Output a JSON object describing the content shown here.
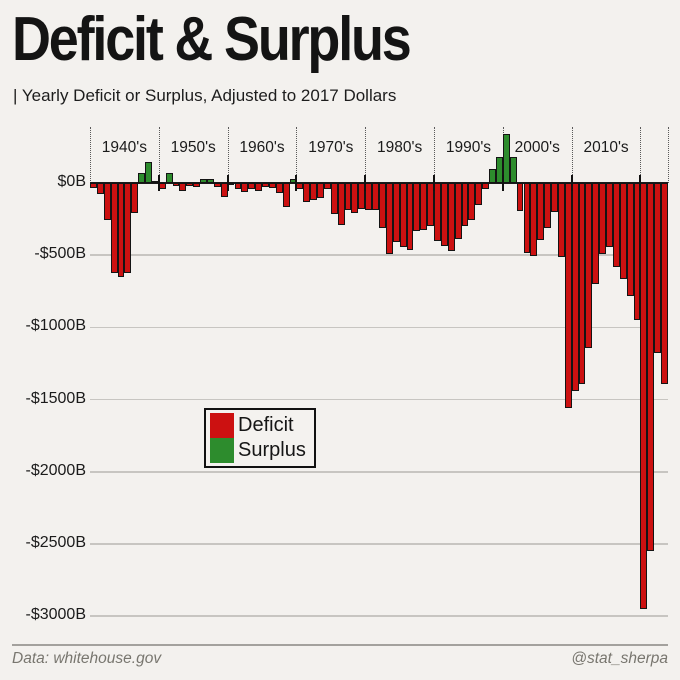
{
  "header": {
    "title": "Deficit & Surplus",
    "subtitle": "| Yearly Deficit or Surplus, Adjusted to 2017 Dollars"
  },
  "legend": {
    "items": [
      {
        "label": "Deficit",
        "color": "#cc1111"
      },
      {
        "label": "Surplus",
        "color": "#2d8c2d"
      }
    ]
  },
  "footer": {
    "source": "Data: whitehouse.gov",
    "credit": "@stat_sherpa"
  },
  "chart_data": {
    "type": "bar",
    "title": "Deficit & Surplus",
    "subtitle": "Yearly Deficit or Surplus, Adjusted to 2017 Dollars",
    "units": "billions of 2017 dollars",
    "ylabel": "",
    "xlabel": "",
    "ylim": [
      -3000,
      350
    ],
    "grid": "horizontal",
    "legend_position": "center-left",
    "colors": {
      "deficit": "#cc1111",
      "surplus": "#2d8c2d",
      "bar_outline": "#141414"
    },
    "y_ticks": [
      {
        "label": "$0B",
        "value": 0
      },
      {
        "label": "-$500B",
        "value": -500
      },
      {
        "label": "-$1000B",
        "value": -1000
      },
      {
        "label": "-$1500B",
        "value": -1500
      },
      {
        "label": "-$2000B",
        "value": -2000
      },
      {
        "label": "-$2500B",
        "value": -2500
      },
      {
        "label": "-$3000B",
        "value": -3000
      }
    ],
    "decade_labels": [
      "1940's",
      "1950's",
      "1960's",
      "1970's",
      "1980's",
      "1990's",
      "2000's",
      "2010's"
    ],
    "x": [
      1940,
      1941,
      1942,
      1943,
      1944,
      1945,
      1946,
      1947,
      1948,
      1949,
      1950,
      1951,
      1952,
      1953,
      1954,
      1955,
      1956,
      1957,
      1958,
      1959,
      1960,
      1961,
      1962,
      1963,
      1964,
      1965,
      1966,
      1967,
      1968,
      1969,
      1970,
      1971,
      1972,
      1973,
      1974,
      1975,
      1976,
      1977,
      1978,
      1979,
      1980,
      1981,
      1982,
      1983,
      1984,
      1985,
      1986,
      1987,
      1988,
      1989,
      1990,
      1991,
      1992,
      1993,
      1994,
      1995,
      1996,
      1997,
      1998,
      1999,
      2000,
      2001,
      2002,
      2003,
      2004,
      2005,
      2006,
      2007,
      2008,
      2009,
      2010,
      2011,
      2012,
      2013,
      2014,
      2015,
      2016,
      2017,
      2018,
      2019,
      2020,
      2021,
      2022,
      2023
    ],
    "values": [
      -35,
      -75,
      -255,
      -620,
      -650,
      -620,
      -210,
      70,
      145,
      5,
      -45,
      70,
      -20,
      -55,
      -20,
      -30,
      30,
      25,
      -30,
      -95,
      -10,
      -45,
      -60,
      -45,
      -55,
      -25,
      -35,
      -70,
      -165,
      25,
      -40,
      -130,
      -120,
      -105,
      -40,
      -215,
      -290,
      -190,
      -210,
      -180,
      -190,
      -185,
      -315,
      -490,
      -410,
      -445,
      -465,
      -330,
      -325,
      -300,
      -400,
      -435,
      -470,
      -390,
      -300,
      -255,
      -155,
      -40,
      100,
      180,
      340,
      180,
      -195,
      -485,
      -505,
      -395,
      -310,
      -200,
      -510,
      -1560,
      -1440,
      -1395,
      -1140,
      -700,
      -490,
      -445,
      -580,
      -665,
      -780,
      -950,
      -2950,
      -2550,
      -1180,
      -1395
    ]
  }
}
